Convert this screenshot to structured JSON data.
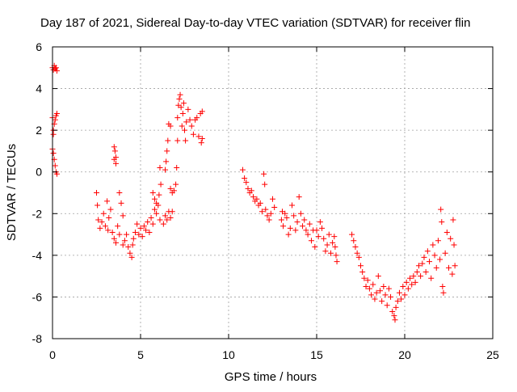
{
  "chart_data": {
    "type": "scatter",
    "title": "Day 187 of 2021, Sidereal Day-to-day VTEC variation (SDTVAR) for receiver flin",
    "xlabel": "GPS time / hours",
    "ylabel": "SDTVAR / TECUs",
    "xlim": [
      0,
      25
    ],
    "ylim": [
      -8,
      6
    ],
    "xticks": [
      0,
      5,
      10,
      15,
      20,
      25
    ],
    "yticks": [
      -8,
      -6,
      -4,
      -2,
      0,
      2,
      4,
      6
    ],
    "grid": true,
    "marker": "+",
    "color": "#ff0000",
    "series": [
      {
        "name": "flin",
        "points": [
          [
            0.0,
            5.0
          ],
          [
            0.05,
            4.9
          ],
          [
            0.1,
            5.1
          ],
          [
            0.15,
            4.95
          ],
          [
            0.2,
            5.0
          ],
          [
            0.25,
            4.85
          ],
          [
            0.0,
            2.6
          ],
          [
            0.05,
            2.0
          ],
          [
            0.1,
            2.3
          ],
          [
            0.15,
            2.5
          ],
          [
            0.2,
            2.7
          ],
          [
            0.25,
            2.8
          ],
          [
            0.05,
            1.8
          ],
          [
            0.0,
            1.1
          ],
          [
            0.05,
            0.9
          ],
          [
            0.1,
            0.6
          ],
          [
            0.15,
            0.3
          ],
          [
            0.2,
            0.0
          ],
          [
            0.25,
            -0.1
          ],
          [
            2.5,
            -1.0
          ],
          [
            2.55,
            -1.6
          ],
          [
            2.6,
            -2.3
          ],
          [
            2.7,
            -2.7
          ],
          [
            2.8,
            -2.4
          ],
          [
            2.9,
            -2.0
          ],
          [
            3.0,
            -2.6
          ],
          [
            3.1,
            -1.4
          ],
          [
            3.15,
            -2.8
          ],
          [
            3.2,
            -2.2
          ],
          [
            3.3,
            -1.8
          ],
          [
            3.4,
            -2.9
          ],
          [
            3.5,
            0.6
          ],
          [
            3.5,
            1.2
          ],
          [
            3.55,
            1.0
          ],
          [
            3.6,
            0.7
          ],
          [
            3.6,
            0.4
          ],
          [
            3.5,
            -3.2
          ],
          [
            3.6,
            -3.4
          ],
          [
            3.7,
            -2.6
          ],
          [
            3.8,
            -3.0
          ],
          [
            3.8,
            -1.0
          ],
          [
            3.9,
            -1.5
          ],
          [
            4.0,
            -3.5
          ],
          [
            4.0,
            -2.1
          ],
          [
            4.1,
            -3.3
          ],
          [
            4.2,
            -3.0
          ],
          [
            4.3,
            -3.6
          ],
          [
            4.4,
            -3.9
          ],
          [
            4.5,
            -4.1
          ],
          [
            4.55,
            -3.5
          ],
          [
            4.6,
            -3.2
          ],
          [
            4.7,
            -2.9
          ],
          [
            4.8,
            -2.5
          ],
          [
            4.9,
            -3.0
          ],
          [
            5.0,
            -2.7
          ],
          [
            5.1,
            -3.1
          ],
          [
            5.2,
            -2.6
          ],
          [
            5.3,
            -2.8
          ],
          [
            5.4,
            -2.4
          ],
          [
            5.5,
            -2.9
          ],
          [
            5.6,
            -2.2
          ],
          [
            5.7,
            -2.5
          ],
          [
            5.8,
            -1.8
          ],
          [
            5.9,
            -2.0
          ],
          [
            6.0,
            -1.6
          ],
          [
            6.1,
            -2.3
          ],
          [
            5.7,
            -1.0
          ],
          [
            5.8,
            -1.3
          ],
          [
            5.9,
            -1.5
          ],
          [
            6.05,
            -1.1
          ],
          [
            6.1,
            0.2
          ],
          [
            6.15,
            -0.6
          ],
          [
            6.3,
            -2.5
          ],
          [
            6.4,
            -2.1
          ],
          [
            6.5,
            -2.3
          ],
          [
            6.6,
            -1.9
          ],
          [
            6.7,
            -2.2
          ],
          [
            6.8,
            -1.9
          ],
          [
            6.4,
            0.1
          ],
          [
            6.45,
            0.5
          ],
          [
            6.5,
            1.0
          ],
          [
            6.55,
            1.5
          ],
          [
            6.6,
            2.3
          ],
          [
            6.7,
            2.2
          ],
          [
            6.7,
            -0.8
          ],
          [
            6.8,
            -1.0
          ],
          [
            6.9,
            -0.9
          ],
          [
            7.0,
            -0.6
          ],
          [
            7.05,
            0.2
          ],
          [
            7.1,
            1.5
          ],
          [
            7.1,
            2.6
          ],
          [
            7.15,
            3.2
          ],
          [
            7.2,
            3.5
          ],
          [
            7.25,
            3.7
          ],
          [
            7.3,
            3.1
          ],
          [
            7.35,
            2.2
          ],
          [
            7.4,
            2.8
          ],
          [
            7.45,
            3.3
          ],
          [
            7.5,
            2.0
          ],
          [
            7.55,
            1.5
          ],
          [
            7.6,
            2.4
          ],
          [
            7.7,
            3.0
          ],
          [
            7.8,
            2.5
          ],
          [
            7.9,
            2.2
          ],
          [
            8.0,
            1.8
          ],
          [
            8.1,
            2.5
          ],
          [
            8.2,
            2.6
          ],
          [
            8.3,
            1.7
          ],
          [
            8.4,
            2.8
          ],
          [
            8.45,
            1.4
          ],
          [
            8.5,
            2.9
          ],
          [
            8.5,
            1.6
          ],
          [
            10.8,
            0.1
          ],
          [
            10.9,
            -0.3
          ],
          [
            11.0,
            -0.5
          ],
          [
            11.1,
            -0.8
          ],
          [
            11.2,
            -1.0
          ],
          [
            11.3,
            -0.9
          ],
          [
            11.4,
            -1.2
          ],
          [
            11.5,
            -1.4
          ],
          [
            11.6,
            -1.3
          ],
          [
            11.7,
            -1.6
          ],
          [
            11.8,
            -1.5
          ],
          [
            11.9,
            -1.9
          ],
          [
            12.0,
            -0.1
          ],
          [
            12.05,
            -0.6
          ],
          [
            12.1,
            -1.8
          ],
          [
            12.2,
            -2.1
          ],
          [
            12.3,
            -2.3
          ],
          [
            12.4,
            -2.0
          ],
          [
            12.5,
            -1.3
          ],
          [
            12.6,
            -1.7
          ],
          [
            13.0,
            -2.3
          ],
          [
            13.05,
            -1.9
          ],
          [
            13.1,
            -2.6
          ],
          [
            13.2,
            -2.0
          ],
          [
            13.3,
            -2.2
          ],
          [
            13.4,
            -3.0
          ],
          [
            13.5,
            -2.7
          ],
          [
            13.6,
            -1.6
          ],
          [
            13.7,
            -2.1
          ],
          [
            13.8,
            -2.8
          ],
          [
            13.9,
            -2.4
          ],
          [
            14.0,
            -1.2
          ],
          [
            14.1,
            -2.0
          ],
          [
            14.2,
            -2.6
          ],
          [
            14.3,
            -2.3
          ],
          [
            14.4,
            -2.8
          ],
          [
            14.5,
            -3.0
          ],
          [
            14.6,
            -2.5
          ],
          [
            14.7,
            -3.3
          ],
          [
            14.8,
            -2.8
          ],
          [
            14.9,
            -3.6
          ],
          [
            15.0,
            -2.8
          ],
          [
            15.1,
            -3.1
          ],
          [
            15.2,
            -2.4
          ],
          [
            15.3,
            -2.7
          ],
          [
            15.4,
            -3.2
          ],
          [
            15.5,
            -3.8
          ],
          [
            15.6,
            -3.5
          ],
          [
            15.7,
            -3.0
          ],
          [
            15.8,
            -3.9
          ],
          [
            15.9,
            -3.4
          ],
          [
            16.0,
            -3.1
          ],
          [
            16.05,
            -3.6
          ],
          [
            16.1,
            -4.0
          ],
          [
            16.15,
            -4.3
          ],
          [
            17.0,
            -3.0
          ],
          [
            17.1,
            -3.3
          ],
          [
            17.2,
            -3.6
          ],
          [
            17.3,
            -3.9
          ],
          [
            17.4,
            -4.1
          ],
          [
            17.5,
            -4.5
          ],
          [
            17.6,
            -4.8
          ],
          [
            17.7,
            -5.1
          ],
          [
            17.8,
            -5.5
          ],
          [
            17.9,
            -5.2
          ],
          [
            18.0,
            -5.6
          ],
          [
            18.1,
            -5.9
          ],
          [
            18.2,
            -5.4
          ],
          [
            18.3,
            -6.1
          ],
          [
            18.4,
            -5.8
          ],
          [
            18.5,
            -5.0
          ],
          [
            18.6,
            -5.7
          ],
          [
            18.7,
            -6.2
          ],
          [
            18.8,
            -5.5
          ],
          [
            18.9,
            -5.9
          ],
          [
            19.0,
            -6.4
          ],
          [
            19.1,
            -5.6
          ],
          [
            19.2,
            -6.0
          ],
          [
            19.3,
            -6.7
          ],
          [
            19.4,
            -6.9
          ],
          [
            19.45,
            -7.1
          ],
          [
            19.5,
            -6.5
          ],
          [
            19.6,
            -6.2
          ],
          [
            19.7,
            -5.8
          ],
          [
            19.8,
            -6.1
          ],
          [
            19.9,
            -5.5
          ],
          [
            20.0,
            -5.9
          ],
          [
            20.1,
            -5.3
          ],
          [
            20.2,
            -5.6
          ],
          [
            20.3,
            -5.1
          ],
          [
            20.4,
            -5.4
          ],
          [
            20.5,
            -5.0
          ],
          [
            20.6,
            -5.3
          ],
          [
            20.7,
            -4.8
          ],
          [
            20.8,
            -4.5
          ],
          [
            20.9,
            -5.0
          ],
          [
            21.0,
            -4.4
          ],
          [
            21.1,
            -4.1
          ],
          [
            21.2,
            -4.8
          ],
          [
            21.3,
            -3.8
          ],
          [
            21.4,
            -4.3
          ],
          [
            21.5,
            -5.1
          ],
          [
            21.6,
            -3.5
          ],
          [
            21.7,
            -4.0
          ],
          [
            21.8,
            -4.6
          ],
          [
            21.9,
            -3.3
          ],
          [
            22.0,
            -4.2
          ],
          [
            22.05,
            -1.8
          ],
          [
            22.1,
            -2.4
          ],
          [
            22.15,
            -5.5
          ],
          [
            22.2,
            -5.8
          ],
          [
            22.3,
            -3.9
          ],
          [
            22.4,
            -2.9
          ],
          [
            22.5,
            -4.6
          ],
          [
            22.6,
            -3.2
          ],
          [
            22.7,
            -4.9
          ],
          [
            22.75,
            -2.3
          ],
          [
            22.8,
            -3.5
          ],
          [
            22.85,
            -4.5
          ]
        ]
      }
    ]
  }
}
